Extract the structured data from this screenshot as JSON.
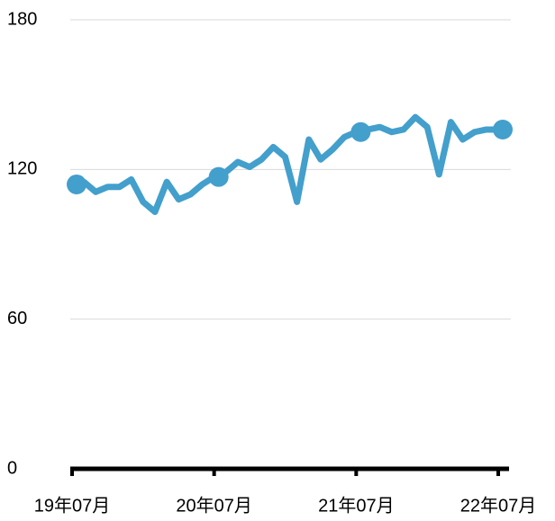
{
  "chart_data": {
    "type": "line",
    "categories": [
      "19年07月",
      null,
      null,
      null,
      null,
      null,
      null,
      null,
      null,
      null,
      null,
      null,
      "20年07月",
      null,
      null,
      null,
      null,
      null,
      null,
      null,
      null,
      null,
      null,
      null,
      "21年07月",
      null,
      null,
      null,
      null,
      null,
      null,
      null,
      null,
      null,
      null,
      null,
      "22年07月"
    ],
    "series": [
      {
        "name": null,
        "color": "#439fcc",
        "values": [
          114,
          115,
          111,
          113,
          113,
          116,
          107,
          103,
          115,
          108,
          110,
          114,
          117,
          119,
          123,
          121,
          124,
          129,
          125,
          107,
          132,
          124,
          128,
          133,
          135,
          136,
          137,
          135,
          136,
          141,
          137,
          118,
          139,
          132,
          135,
          136,
          136
        ]
      }
    ],
    "ylim": [
      0,
      180
    ],
    "yticks": [
      0,
      60,
      120,
      180
    ],
    "grid": true
  }
}
